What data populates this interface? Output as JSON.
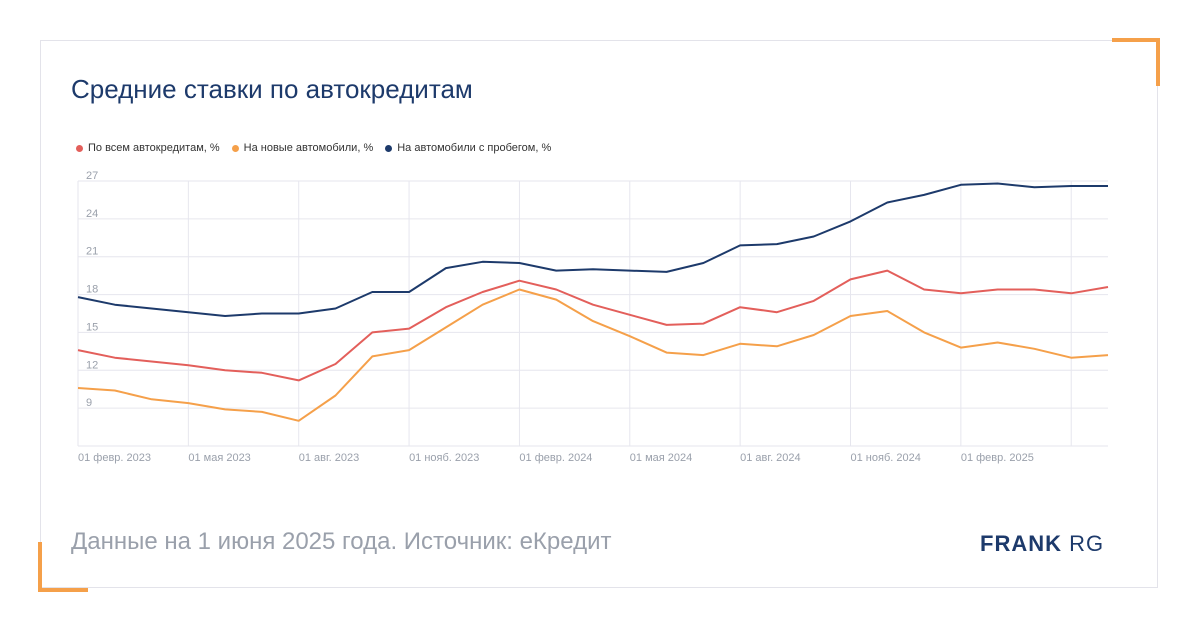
{
  "title": "Средние ставки по автокредитам",
  "footer": "Данные на 1 июня 2025 года. Источник: еКредит",
  "logo": {
    "bold": "FRANK",
    "light": "RG"
  },
  "colors": {
    "all": "#e35f5b",
    "new": "#f5a04a",
    "used": "#1d3a6b",
    "accent": "#f5a04a"
  },
  "chart_data": {
    "type": "line",
    "ylim": [
      6,
      27
    ],
    "yticks": [
      27,
      24,
      21,
      18,
      15,
      12,
      9
    ],
    "x_tick_labels": [
      "01 февр. 2023",
      "01 мая 2023",
      "01 авг. 2023",
      "01 нояб. 2023",
      "01 февр. 2024",
      "01 мая 2024",
      "01 авг. 2024",
      "01 нояб. 2024",
      "01 февр. 2025"
    ],
    "x": [
      "2023-01-01",
      "2023-02-01",
      "2023-03-01",
      "2023-04-01",
      "2023-05-01",
      "2023-06-01",
      "2023-07-01",
      "2023-08-01",
      "2023-09-01",
      "2023-10-01",
      "2023-11-01",
      "2023-12-01",
      "2024-01-01",
      "2024-02-01",
      "2024-03-01",
      "2024-04-01",
      "2024-05-01",
      "2024-06-01",
      "2024-07-01",
      "2024-08-01",
      "2024-09-01",
      "2024-10-01",
      "2024-11-01",
      "2024-12-01",
      "2025-01-01",
      "2025-02-01",
      "2025-03-01",
      "2025-04-01",
      "2025-05-01"
    ],
    "grid": true,
    "legend_position": "top-left",
    "series": [
      {
        "key": "all",
        "name": "По всем автокредитам, %",
        "values": [
          13.6,
          13.0,
          12.7,
          12.4,
          12.0,
          11.8,
          11.2,
          12.5,
          15.0,
          15.3,
          17.0,
          18.2,
          19.1,
          18.4,
          17.2,
          16.4,
          15.6,
          15.7,
          17.0,
          16.6,
          17.5,
          19.2,
          19.9,
          18.4,
          18.1,
          18.4,
          18.4,
          18.1,
          18.6
        ]
      },
      {
        "key": "new",
        "name": "На новые автомобили, %",
        "values": [
          10.6,
          10.4,
          9.7,
          9.4,
          8.9,
          8.7,
          8.0,
          10.0,
          13.1,
          13.6,
          15.4,
          17.2,
          18.4,
          17.6,
          15.9,
          14.7,
          13.4,
          13.2,
          14.1,
          13.9,
          14.8,
          16.3,
          16.7,
          15.0,
          13.8,
          14.2,
          13.7,
          13.0,
          13.2
        ]
      },
      {
        "key": "used",
        "name": "На автомобили с пробегом, %",
        "values": [
          17.8,
          17.2,
          16.9,
          16.6,
          16.3,
          16.5,
          16.5,
          16.9,
          18.2,
          18.2,
          20.1,
          20.6,
          20.5,
          19.9,
          20.0,
          19.9,
          19.8,
          20.5,
          21.9,
          22.0,
          22.6,
          23.8,
          25.3,
          25.9,
          26.7,
          26.8,
          26.5,
          26.6,
          26.6
        ]
      }
    ]
  }
}
